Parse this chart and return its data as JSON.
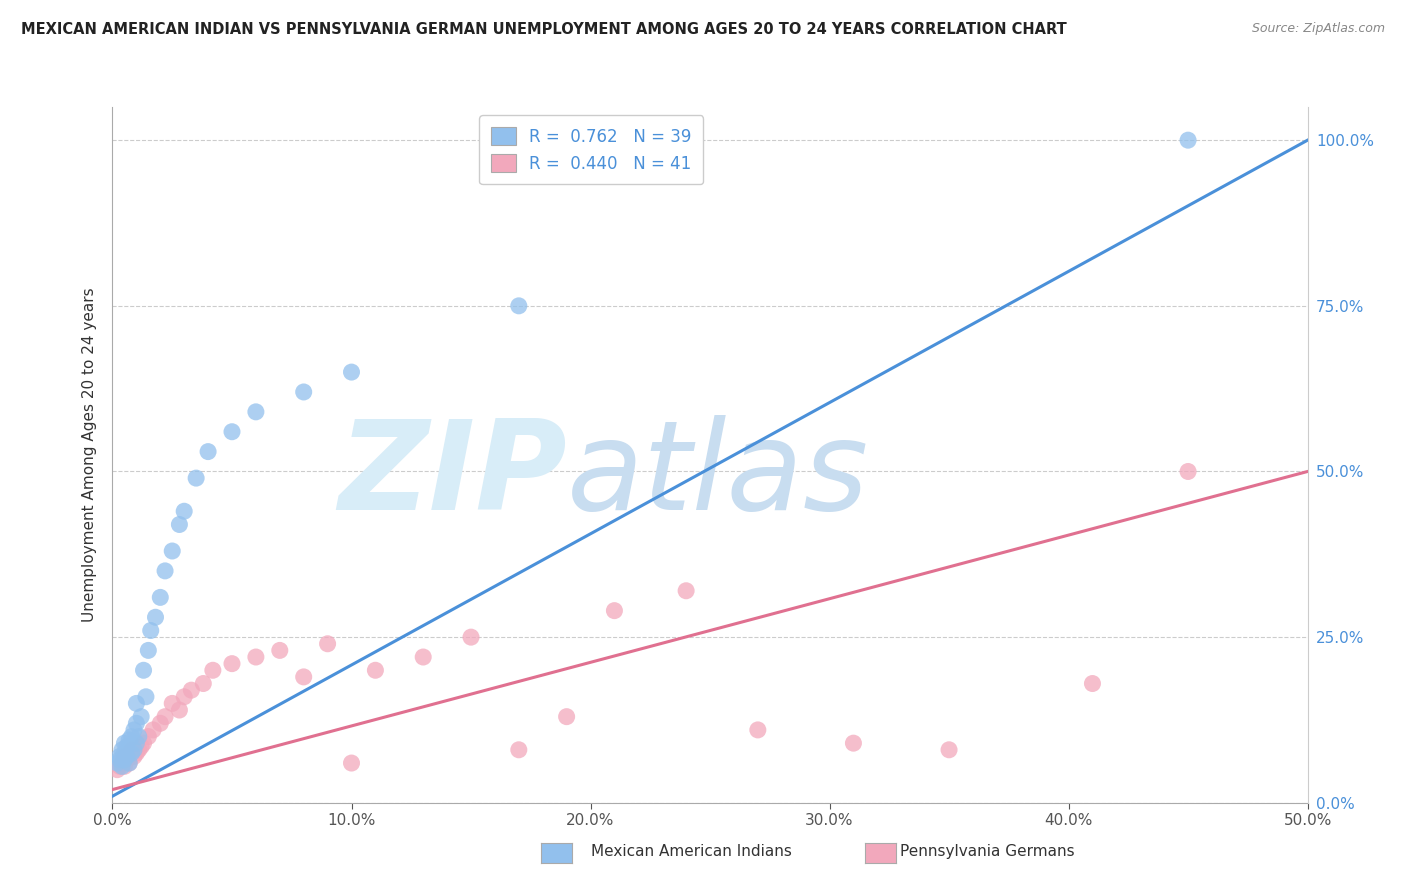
{
  "title": "MEXICAN AMERICAN INDIAN VS PENNSYLVANIA GERMAN UNEMPLOYMENT AMONG AGES 20 TO 24 YEARS CORRELATION CHART",
  "source": "Source: ZipAtlas.com",
  "ylabel": "Unemployment Among Ages 20 to 24 years",
  "xlabel_blue": "Mexican American Indians",
  "xlabel_pink": "Pennsylvania Germans",
  "xlim": [
    0.0,
    0.5
  ],
  "ylim": [
    0.0,
    1.05
  ],
  "x_ticks": [
    0.0,
    0.1,
    0.2,
    0.3,
    0.4,
    0.5
  ],
  "x_tick_labels": [
    "0.0%",
    "10.0%",
    "20.0%",
    "30.0%",
    "40.0%",
    "50.0%"
  ],
  "y_ticks": [
    0.0,
    0.25,
    0.5,
    0.75,
    1.0
  ],
  "y_tick_labels": [
    "0.0%",
    "25.0%",
    "50.0%",
    "75.0%",
    "100.0%"
  ],
  "legend_R_blue": "0.762",
  "legend_N_blue": "39",
  "legend_R_pink": "0.440",
  "legend_N_pink": "41",
  "blue_color": "#92c0ed",
  "pink_color": "#f2a8bc",
  "line_blue": "#4a90d9",
  "line_pink": "#e07090",
  "watermark_text": "ZIP",
  "watermark_text2": "atlas",
  "watermark_color": "#d8edf8",
  "blue_scatter_x": [
    0.002,
    0.003,
    0.003,
    0.004,
    0.004,
    0.005,
    0.005,
    0.005,
    0.006,
    0.006,
    0.007,
    0.007,
    0.008,
    0.008,
    0.009,
    0.009,
    0.01,
    0.01,
    0.01,
    0.011,
    0.012,
    0.013,
    0.014,
    0.015,
    0.016,
    0.018,
    0.02,
    0.022,
    0.025,
    0.028,
    0.03,
    0.035,
    0.04,
    0.05,
    0.06,
    0.08,
    0.1,
    0.17,
    0.45
  ],
  "blue_scatter_y": [
    0.06,
    0.065,
    0.07,
    0.055,
    0.08,
    0.065,
    0.075,
    0.09,
    0.07,
    0.085,
    0.06,
    0.095,
    0.075,
    0.1,
    0.08,
    0.11,
    0.09,
    0.12,
    0.15,
    0.1,
    0.13,
    0.2,
    0.16,
    0.23,
    0.26,
    0.28,
    0.31,
    0.35,
    0.38,
    0.42,
    0.44,
    0.49,
    0.53,
    0.56,
    0.59,
    0.62,
    0.65,
    0.75,
    1.0
  ],
  "pink_scatter_x": [
    0.002,
    0.003,
    0.004,
    0.005,
    0.005,
    0.006,
    0.007,
    0.008,
    0.009,
    0.01,
    0.011,
    0.012,
    0.013,
    0.015,
    0.017,
    0.02,
    0.022,
    0.025,
    0.028,
    0.03,
    0.033,
    0.038,
    0.042,
    0.05,
    0.06,
    0.07,
    0.08,
    0.09,
    0.1,
    0.11,
    0.13,
    0.15,
    0.17,
    0.19,
    0.21,
    0.24,
    0.27,
    0.31,
    0.35,
    0.41,
    0.45
  ],
  "pink_scatter_y": [
    0.05,
    0.055,
    0.06,
    0.055,
    0.07,
    0.065,
    0.06,
    0.08,
    0.07,
    0.075,
    0.08,
    0.085,
    0.09,
    0.1,
    0.11,
    0.12,
    0.13,
    0.15,
    0.14,
    0.16,
    0.17,
    0.18,
    0.2,
    0.21,
    0.22,
    0.23,
    0.19,
    0.24,
    0.06,
    0.2,
    0.22,
    0.25,
    0.08,
    0.13,
    0.29,
    0.32,
    0.11,
    0.09,
    0.08,
    0.18,
    0.5
  ],
  "blue_line_x0": 0.0,
  "blue_line_y0": 0.01,
  "blue_line_x1": 0.5,
  "blue_line_y1": 1.0,
  "pink_line_x0": 0.0,
  "pink_line_y0": 0.02,
  "pink_line_x1": 0.5,
  "pink_line_y1": 0.5
}
